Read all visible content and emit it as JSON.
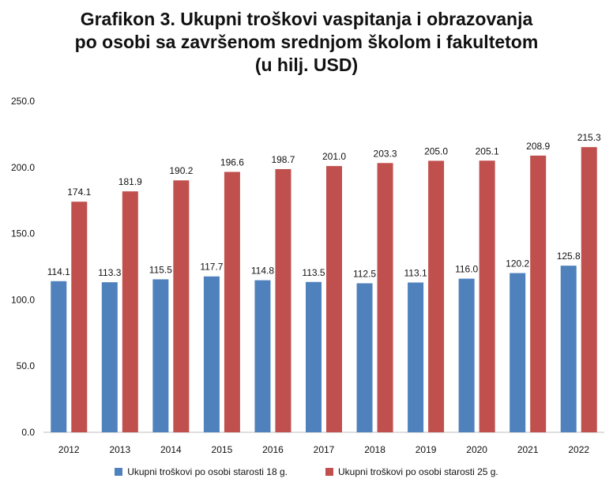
{
  "title_lines": [
    "Grafikon 3. Ukupni troškovi vaspitanja i obrazovanja",
    "po osobi sa završenom srednjom školom i fakultetom",
    "(u hilj. USD)"
  ],
  "colors": {
    "series1": "#4F81BD",
    "series2": "#C0504D",
    "grid": "#D9D9D9"
  },
  "chart_data": {
    "type": "bar",
    "title": "Grafikon 3. Ukupni troškovi vaspitanja i obrazovanja po osobi sa završenom srednjom školom i fakultetom (u hilj. USD)",
    "categories": [
      "2012",
      "2013",
      "2014",
      "2015",
      "2016",
      "2017",
      "2018",
      "2019",
      "2020",
      "2021",
      "2022"
    ],
    "series": [
      {
        "name": "Ukupni troškovi  po osobi starosti 18 g.",
        "values": [
          114.1,
          113.3,
          115.5,
          117.7,
          114.8,
          113.5,
          112.5,
          113.1,
          116.0,
          120.2,
          125.8
        ]
      },
      {
        "name": "Ukupni troškovi  po osobi starosti 25 g.",
        "values": [
          174.1,
          181.9,
          190.2,
          196.6,
          198.7,
          201.0,
          203.3,
          205.0,
          205.1,
          208.9,
          215.3
        ]
      }
    ],
    "yticks": [
      "0.0",
      "50.0",
      "100.0",
      "150.0",
      "200.0",
      "250.0"
    ],
    "ylim": [
      0,
      250
    ],
    "xlabel": "",
    "ylabel": "",
    "grid": false,
    "legend": "bottom"
  }
}
